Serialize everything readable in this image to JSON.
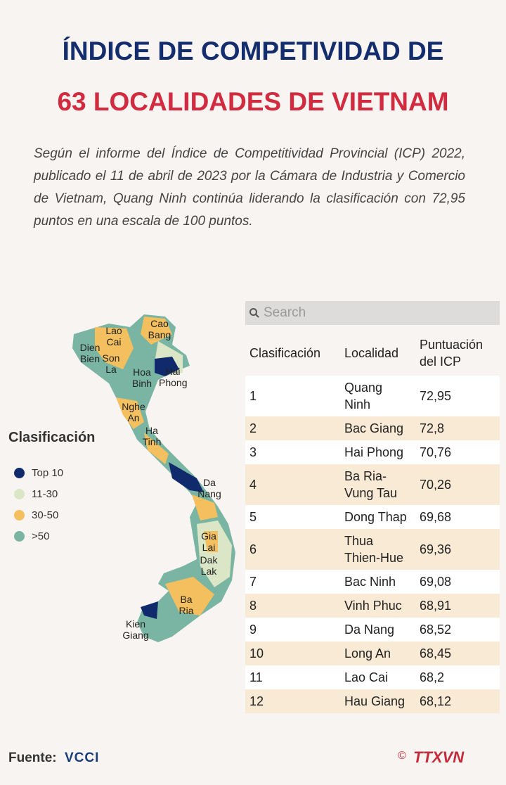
{
  "header": {
    "title_line1": "ÍNDICE DE COMPETIVIDAD DE",
    "title_line2": "63 LOCALIDADES DE VIETNAM"
  },
  "intro": "Según el informe del Índice de Competitividad Provincial (ICP) 2022, publicado el 11 de abril de 2023 por la Cámara de Industria y Comercio de Vietnam, Quang Ninh continúa liderando la clasificación con 72,95 puntos en una escala de 100 puntos.",
  "map": {
    "labels": [
      "Lao Cai",
      "Cao Bang",
      "Dien Bien",
      "Son La",
      "Hoa Binh",
      "Hai Phong",
      "Nghe An",
      "Ha Tinh",
      "Da Nang",
      "Gia Lai",
      "Dak Lak",
      "Ba Ria",
      "Kien Giang"
    ]
  },
  "legend": {
    "title": "Clasificación",
    "items": [
      {
        "label": "Top 10",
        "color": "#102a6b"
      },
      {
        "label": "11-30",
        "color": "#dbe6c6"
      },
      {
        "label": "30-50",
        "color": "#f3bf5f"
      },
      {
        "label": ">50",
        "color": "#79b5a2"
      }
    ]
  },
  "search": {
    "placeholder": "Search"
  },
  "table": {
    "columns": [
      "Clasificación",
      "Localidad",
      "Puntuación del ICP"
    ],
    "rows": [
      [
        "1",
        "Quang Ninh",
        "72,95"
      ],
      [
        "2",
        "Bac Giang",
        "72,8"
      ],
      [
        "3",
        "Hai Phong",
        "70,76"
      ],
      [
        "4",
        "Ba Ria-Vung Tau",
        "70,26"
      ],
      [
        "5",
        "Dong Thap",
        "69,68"
      ],
      [
        "6",
        "Thua Thien-Hue",
        "69,36"
      ],
      [
        "7",
        "Bac Ninh",
        "69,08"
      ],
      [
        "8",
        "Vinh Phuc",
        "68,91"
      ],
      [
        "9",
        "Da Nang",
        "68,52"
      ],
      [
        "10",
        "Long An",
        "68,45"
      ],
      [
        "11",
        "Lao Cai",
        "68,2"
      ],
      [
        "12",
        "Hau Giang",
        "68,12"
      ]
    ]
  },
  "footer": {
    "source_label": "Fuente:",
    "source": "VCCI",
    "copyright": "©",
    "agency": "TTXVN"
  }
}
